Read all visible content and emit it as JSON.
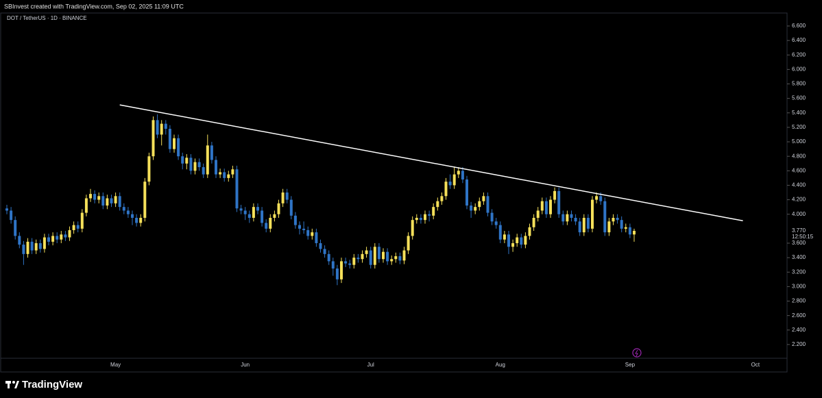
{
  "header": "SBInvest created with TradingView.com, Sep 02, 2025 11:09 UTC",
  "logo": "TradingView",
  "chart_data": {
    "type": "candlestick",
    "title": "DOT / TetherUS · 1D · BINANCE",
    "up_color": "#f5e05a",
    "down_color": "#2f74c6",
    "categories": [
      null,
      null,
      null,
      null,
      null,
      null,
      null,
      null,
      null,
      null,
      null,
      null,
      null,
      null,
      null,
      null,
      null,
      null,
      null,
      null,
      null,
      null,
      null,
      null,
      null,
      null,
      "May",
      null,
      null,
      null,
      null,
      null,
      null,
      null,
      null,
      null,
      null,
      null,
      null,
      null,
      null,
      null,
      null,
      null,
      null,
      null,
      null,
      null,
      null,
      null,
      null,
      null,
      null,
      null,
      null,
      null,
      null,
      "Jun",
      null,
      null,
      null,
      null,
      null,
      null,
      null,
      null,
      null,
      null,
      null,
      null,
      null,
      null,
      null,
      null,
      null,
      null,
      null,
      null,
      null,
      null,
      null,
      null,
      null,
      null,
      null,
      null,
      null,
      "Jul",
      null,
      null,
      null,
      null,
      null,
      null,
      null,
      null,
      null,
      null,
      null,
      null,
      null,
      null,
      null,
      null,
      null,
      null,
      null,
      null,
      null,
      null,
      null,
      null,
      null,
      null,
      null,
      null,
      null,
      null,
      "Aug",
      null,
      null,
      null,
      null,
      null,
      null,
      null,
      null,
      null,
      null,
      null,
      null,
      null,
      null,
      null,
      null,
      null,
      null,
      null,
      null,
      null,
      null,
      null,
      null,
      null,
      null,
      null,
      null,
      null,
      null,
      "Sep",
      null,
      null,
      null,
      null,
      null,
      null,
      null,
      null,
      null,
      null,
      null,
      null,
      null,
      null,
      null,
      null,
      null,
      null,
      null,
      null,
      null,
      null,
      null,
      null,
      null,
      null,
      null,
      null,
      null,
      "Oct",
      null,
      null,
      null,
      null,
      null,
      null
    ],
    "open": [
      4.08,
      4.05,
      3.92,
      3.7,
      3.58,
      3.45,
      3.62,
      3.5,
      3.6,
      3.52,
      3.68,
      3.62,
      3.7,
      3.65,
      3.72,
      3.68,
      3.78,
      3.85,
      3.8,
      4.02,
      4.22,
      4.28,
      4.2,
      4.25,
      4.12,
      4.22,
      4.15,
      4.25,
      4.1,
      4.05,
      4.0,
      3.95,
      3.88,
      3.95,
      4.45,
      4.8,
      5.3,
      5.1,
      5.25,
      5.18,
      4.9,
      5.05,
      4.8,
      4.7,
      4.78,
      4.6,
      4.72,
      4.65,
      4.55,
      4.95,
      4.75,
      4.55,
      4.58,
      4.5,
      4.55,
      4.62,
      4.08,
      4.05,
      4.0,
      3.95,
      4.1,
      4.05,
      3.88,
      3.8,
      3.95,
      4.0,
      4.15,
      4.3,
      4.2,
      3.98,
      3.85,
      3.8,
      3.78,
      3.7,
      3.75,
      3.6,
      3.52,
      3.45,
      3.35,
      3.25,
      3.1,
      3.35,
      3.32,
      3.3,
      3.4,
      3.38,
      3.45,
      3.5,
      3.3,
      3.55,
      3.38,
      3.48,
      3.35,
      3.38,
      3.42,
      3.36,
      3.5,
      3.7,
      3.92,
      3.95,
      3.92,
      4.0,
      3.98,
      4.1,
      4.18,
      4.25,
      4.45,
      4.4,
      4.55,
      4.6,
      4.48,
      4.12,
      4.05,
      4.1,
      4.18,
      4.25,
      4.02,
      3.9,
      3.85,
      3.65,
      3.72,
      3.55,
      3.6,
      3.68,
      3.58,
      3.7,
      3.82,
      3.95,
      4.05,
      4.18,
      4.0,
      4.2,
      4.32,
      4.0,
      3.9,
      4.0,
      3.95,
      3.9,
      3.75,
      3.95,
      3.8,
      4.2,
      4.25,
      4.18,
      3.75,
      3.9,
      3.95,
      3.92,
      3.8,
      3.82,
      3.72,
      null,
      null,
      null,
      null,
      null,
      null,
      null,
      null,
      null,
      null,
      null,
      null,
      null,
      null,
      null,
      null,
      null,
      null,
      null,
      null,
      null,
      null,
      null,
      null,
      null,
      null,
      null,
      null,
      null,
      null,
      null,
      null,
      null,
      null,
      null
    ],
    "high": [
      4.13,
      4.1,
      3.97,
      3.75,
      3.63,
      3.67,
      3.67,
      3.65,
      3.65,
      3.73,
      3.73,
      3.75,
      3.75,
      3.77,
      3.77,
      3.83,
      3.9,
      3.9,
      4.07,
      4.27,
      4.35,
      4.33,
      4.3,
      4.3,
      4.27,
      4.27,
      4.3,
      4.3,
      4.15,
      4.1,
      4.05,
      4.0,
      4.0,
      4.5,
      4.85,
      5.35,
      5.38,
      5.3,
      5.3,
      5.23,
      5.1,
      5.1,
      4.85,
      4.83,
      4.83,
      4.77,
      4.77,
      4.7,
      5.1,
      5.0,
      4.8,
      4.63,
      4.63,
      4.6,
      4.67,
      4.67,
      4.13,
      4.1,
      4.05,
      4.15,
      4.15,
      4.1,
      3.93,
      4.0,
      4.05,
      4.2,
      4.35,
      4.35,
      4.25,
      4.03,
      3.9,
      3.9,
      3.83,
      3.8,
      3.8,
      3.65,
      3.57,
      3.5,
      3.4,
      3.3,
      3.4,
      3.4,
      3.37,
      3.45,
      3.45,
      3.5,
      3.55,
      3.55,
      3.6,
      3.6,
      3.53,
      3.53,
      3.43,
      3.47,
      3.47,
      3.55,
      3.75,
      3.97,
      4.0,
      4.0,
      4.05,
      4.05,
      4.15,
      4.23,
      4.3,
      4.5,
      4.55,
      4.66,
      4.65,
      4.65,
      4.53,
      4.17,
      4.15,
      4.23,
      4.3,
      4.3,
      4.07,
      3.95,
      3.9,
      3.77,
      3.77,
      3.65,
      3.73,
      3.73,
      3.75,
      3.87,
      4.0,
      4.1,
      4.23,
      4.23,
      4.25,
      4.37,
      4.37,
      4.05,
      4.05,
      4.05,
      4.0,
      3.95,
      4.0,
      4.0,
      4.25,
      4.3,
      4.3,
      4.23,
      3.95,
      4.0,
      4.0,
      3.97,
      3.87,
      3.87,
      3.8,
      null,
      null,
      null,
      null,
      null,
      null,
      null,
      null,
      null,
      null,
      null,
      null,
      null,
      null,
      null,
      null,
      null,
      null,
      null,
      null,
      null,
      null,
      null,
      null,
      null,
      null,
      null,
      null,
      null,
      null,
      null,
      null,
      null,
      null,
      null
    ],
    "low": [
      4.0,
      3.87,
      3.65,
      3.53,
      3.3,
      3.4,
      3.45,
      3.45,
      3.47,
      3.47,
      3.57,
      3.57,
      3.6,
      3.6,
      3.63,
      3.63,
      3.73,
      3.75,
      3.75,
      3.97,
      4.17,
      4.15,
      4.15,
      4.07,
      4.07,
      4.1,
      4.1,
      4.05,
      4.0,
      3.95,
      3.85,
      3.83,
      3.83,
      3.9,
      4.4,
      4.75,
      5.05,
      4.95,
      5.1,
      4.85,
      4.85,
      4.75,
      4.62,
      4.62,
      4.55,
      4.55,
      4.6,
      4.5,
      4.5,
      4.7,
      4.5,
      4.5,
      4.45,
      4.45,
      4.5,
      4.03,
      4.0,
      3.92,
      3.88,
      3.9,
      4.0,
      3.83,
      3.75,
      3.75,
      3.9,
      3.95,
      4.1,
      4.15,
      3.93,
      3.8,
      3.72,
      3.73,
      3.65,
      3.65,
      3.55,
      3.47,
      3.4,
      3.3,
      3.15,
      3.02,
      3.05,
      3.27,
      3.25,
      3.25,
      3.33,
      3.33,
      3.4,
      3.25,
      3.25,
      3.33,
      3.33,
      3.3,
      3.3,
      3.33,
      3.31,
      3.31,
      3.45,
      3.65,
      3.87,
      3.87,
      3.87,
      3.9,
      3.93,
      4.05,
      4.13,
      4.2,
      4.35,
      4.35,
      4.5,
      4.43,
      4.07,
      3.95,
      4.0,
      4.05,
      4.13,
      3.97,
      3.85,
      3.8,
      3.6,
      3.6,
      3.45,
      3.48,
      3.55,
      3.53,
      3.53,
      3.65,
      3.77,
      3.9,
      4.0,
      3.95,
      3.95,
      4.15,
      3.95,
      3.85,
      3.85,
      3.9,
      3.85,
      3.7,
      3.7,
      3.75,
      3.75,
      4.15,
      4.13,
      3.7,
      3.7,
      3.85,
      3.87,
      3.75,
      3.75,
      3.67,
      3.62,
      null,
      null,
      null,
      null,
      null,
      null,
      null,
      null,
      null,
      null,
      null,
      null,
      null,
      null,
      null,
      null,
      null,
      null,
      null,
      null,
      null,
      null,
      null,
      null,
      null,
      null,
      null,
      null,
      null,
      null,
      null,
      null,
      null,
      null,
      null
    ],
    "close": [
      4.05,
      3.92,
      3.7,
      3.58,
      3.45,
      3.62,
      3.5,
      3.6,
      3.52,
      3.68,
      3.62,
      3.7,
      3.65,
      3.72,
      3.68,
      3.78,
      3.85,
      3.8,
      4.02,
      4.22,
      4.28,
      4.2,
      4.25,
      4.12,
      4.22,
      4.15,
      4.25,
      4.1,
      4.05,
      4.0,
      3.95,
      3.88,
      3.95,
      4.45,
      4.8,
      5.3,
      5.1,
      5.25,
      5.18,
      4.9,
      5.05,
      4.8,
      4.7,
      4.78,
      4.6,
      4.72,
      4.65,
      4.55,
      4.95,
      4.75,
      4.55,
      4.58,
      4.5,
      4.55,
      4.62,
      4.08,
      4.05,
      4.0,
      3.95,
      4.1,
      4.05,
      3.88,
      3.8,
      3.95,
      4.0,
      4.15,
      4.3,
      4.2,
      3.98,
      3.85,
      3.8,
      3.78,
      3.7,
      3.75,
      3.6,
      3.52,
      3.45,
      3.35,
      3.25,
      3.1,
      3.35,
      3.32,
      3.3,
      3.4,
      3.38,
      3.45,
      3.5,
      3.3,
      3.55,
      3.38,
      3.48,
      3.35,
      3.38,
      3.42,
      3.36,
      3.5,
      3.7,
      3.92,
      3.95,
      3.92,
      4.0,
      3.98,
      4.1,
      4.18,
      4.25,
      4.45,
      4.4,
      4.55,
      4.6,
      4.48,
      4.12,
      4.05,
      4.1,
      4.18,
      4.25,
      4.02,
      3.9,
      3.85,
      3.65,
      3.72,
      3.55,
      3.6,
      3.68,
      3.58,
      3.7,
      3.82,
      3.95,
      4.05,
      4.18,
      4.0,
      4.2,
      4.32,
      4.0,
      3.9,
      4.0,
      3.95,
      3.9,
      3.75,
      3.95,
      3.8,
      4.2,
      4.25,
      4.18,
      3.75,
      3.9,
      3.95,
      3.92,
      3.8,
      3.82,
      3.72,
      3.77,
      null,
      null,
      null,
      null,
      null,
      null,
      null,
      null,
      null,
      null,
      null,
      null,
      null,
      null,
      null,
      null,
      null,
      null,
      null,
      null,
      null,
      null,
      null,
      null,
      null,
      null,
      null,
      null,
      null,
      null,
      null,
      null,
      null,
      null,
      null
    ],
    "ylim": [
      2.01,
      6.77
    ],
    "yticks": [
      {
        "value": 6.6,
        "label": "6.600"
      },
      {
        "value": 6.4,
        "label": "6.400"
      },
      {
        "value": 6.2,
        "label": "6.200"
      },
      {
        "value": 6.0,
        "label": "6.000"
      },
      {
        "value": 5.8,
        "label": "5.800"
      },
      {
        "value": 5.6,
        "label": "5.600"
      },
      {
        "value": 5.4,
        "label": "5.400"
      },
      {
        "value": 5.2,
        "label": "5.200"
      },
      {
        "value": 5.0,
        "label": "5.000"
      },
      {
        "value": 4.8,
        "label": "4.800"
      },
      {
        "value": 4.6,
        "label": "4.600"
      },
      {
        "value": 4.4,
        "label": "4.400"
      },
      {
        "value": 4.2,
        "label": "4.200"
      },
      {
        "value": 4.0,
        "label": "4.000"
      },
      {
        "value": 3.6,
        "label": "3.600"
      },
      {
        "value": 3.4,
        "label": "3.400"
      },
      {
        "value": 3.2,
        "label": "3.200"
      },
      {
        "value": 3.0,
        "label": "3.000"
      },
      {
        "value": 2.8,
        "label": "2.800"
      },
      {
        "value": 2.6,
        "label": "2.600"
      },
      {
        "value": 2.4,
        "label": "2.400"
      },
      {
        "value": 2.2,
        "label": "2.200"
      }
    ],
    "last_price": {
      "value": 3.77,
      "label": "3.770"
    },
    "countdown": "12:50:15",
    "trendline": {
      "x": [
        27,
        176
      ],
      "y": [
        5.51,
        3.91
      ],
      "color": "#ffffff"
    }
  }
}
